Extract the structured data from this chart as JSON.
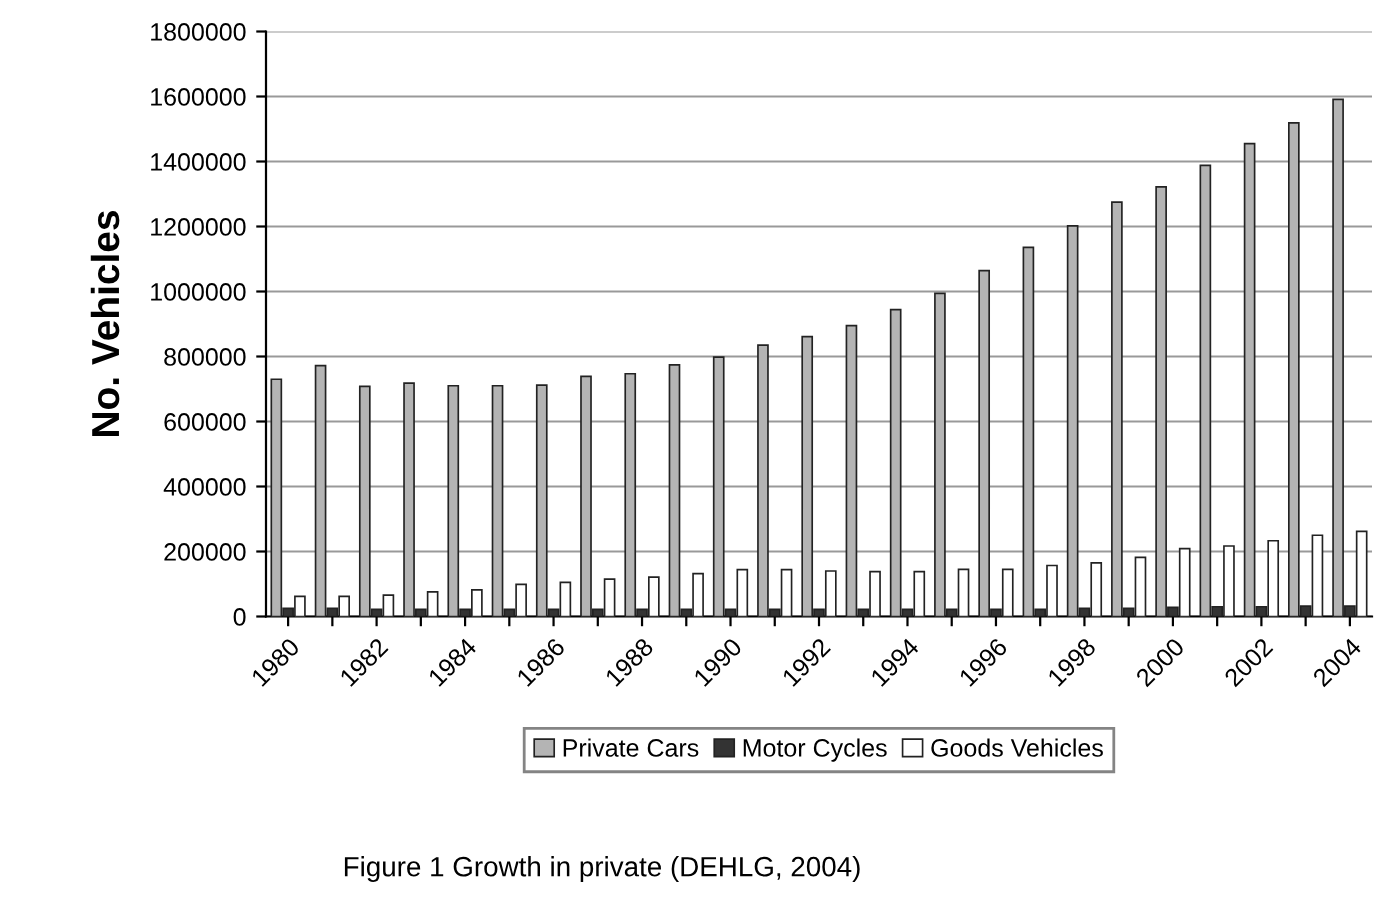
{
  "chart_data": {
    "type": "bar",
    "ylabel": "No. Vehicles",
    "annotations": [
      "Figure 1 Growth in private (DEHLG, 2004)"
    ],
    "categories": [
      "1980",
      null,
      "1982",
      null,
      "1984",
      null,
      "1986",
      null,
      "1988",
      null,
      "1990",
      null,
      "1992",
      null,
      "1994",
      null,
      "1996",
      null,
      "1998",
      null,
      "2000",
      null,
      "2002",
      null,
      "2004"
    ],
    "series": [
      {
        "name": "Private Cars",
        "color": "#b4b4b4",
        "values": [
          730000,
          772000,
          708000,
          718000,
          710000,
          710000,
          712000,
          739000,
          747000,
          774000,
          798000,
          835000,
          861000,
          895000,
          944000,
          994000,
          1064000,
          1136000,
          1202000,
          1275000,
          1322000,
          1388000,
          1455000,
          1519000,
          1591000
        ]
      },
      {
        "name": "Motor Cycles",
        "color": "#333333",
        "values": [
          25000,
          25000,
          22000,
          22000,
          22000,
          22000,
          22000,
          22000,
          22000,
          22000,
          22000,
          22000,
          22000,
          22000,
          22000,
          22000,
          22000,
          22000,
          25000,
          25000,
          28000,
          30000,
          30000,
          32000,
          32000
        ]
      },
      {
        "name": "Goods Vehicles",
        "color": "#ffffff",
        "values": [
          62000,
          62000,
          66000,
          76000,
          82000,
          99000,
          105000,
          115000,
          121000,
          132000,
          144000,
          144000,
          140000,
          138000,
          138000,
          145000,
          145000,
          157000,
          165000,
          182000,
          209000,
          217000,
          233000,
          250000,
          262000
        ]
      }
    ],
    "ylim": [
      0,
      1800000
    ],
    "yticks": [
      0,
      200000,
      400000,
      600000,
      800000,
      1000000,
      1200000,
      1400000,
      1600000,
      1800000
    ],
    "grid": "y",
    "legend": "bottom"
  }
}
